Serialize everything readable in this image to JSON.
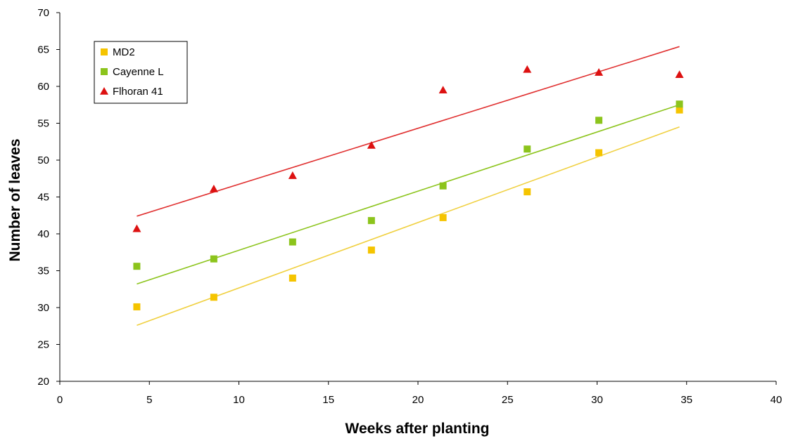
{
  "chart_data": {
    "type": "scatter",
    "title": "",
    "xlabel": "Weeks after planting",
    "ylabel": "Number of leaves",
    "xlim": [
      0,
      40
    ],
    "ylim": [
      20,
      70
    ],
    "xticks": [
      0,
      5,
      10,
      15,
      20,
      25,
      30,
      35,
      40
    ],
    "yticks": [
      20,
      25,
      30,
      35,
      40,
      45,
      50,
      55,
      60,
      65,
      70
    ],
    "grid": false,
    "legend_position": "top-left",
    "series": [
      {
        "name": "MD2",
        "marker": "square",
        "color": "#f5c400",
        "line_color": "#f0d040",
        "x": [
          4.3,
          8.6,
          13.0,
          17.4,
          21.4,
          26.1,
          30.1,
          34.6
        ],
        "y": [
          30.1,
          31.4,
          34.0,
          37.8,
          42.2,
          45.7,
          51.0,
          56.8
        ],
        "trend": [
          [
            4.3,
            27.6
          ],
          [
            34.6,
            54.5
          ]
        ]
      },
      {
        "name": "Cayenne L",
        "marker": "square",
        "color": "#8cc41c",
        "line_color": "#8cc41c",
        "x": [
          4.3,
          8.6,
          13.0,
          17.4,
          21.4,
          26.1,
          30.1,
          34.6
        ],
        "y": [
          35.6,
          36.6,
          38.9,
          41.8,
          46.5,
          51.5,
          55.4,
          57.6
        ],
        "trend": [
          [
            4.3,
            33.2
          ],
          [
            34.6,
            57.5
          ]
        ]
      },
      {
        "name": "Flhoran 41",
        "marker": "triangle",
        "color": "#dd1111",
        "line_color": "#e03030",
        "x": [
          4.3,
          8.6,
          13.0,
          17.4,
          21.4,
          26.1,
          30.1,
          34.6
        ],
        "y": [
          40.7,
          46.1,
          47.9,
          52.0,
          59.5,
          62.3,
          61.9,
          61.6
        ],
        "trend": [
          [
            4.3,
            42.4
          ],
          [
            34.6,
            65.4
          ]
        ]
      }
    ]
  }
}
